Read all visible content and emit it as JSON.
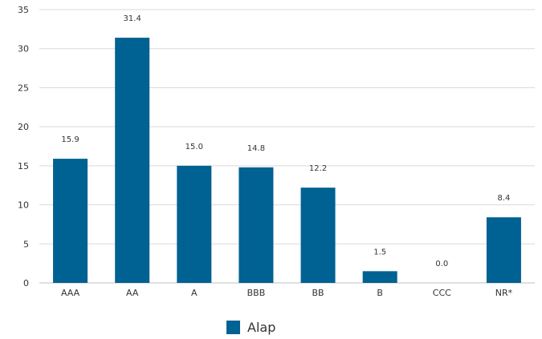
{
  "chart_data": {
    "type": "bar",
    "categories": [
      "AAA",
      "AA",
      "A",
      "BBB",
      "BB",
      "B",
      "CCC",
      "NR*"
    ],
    "series": [
      {
        "name": "Alap",
        "values": [
          15.9,
          31.4,
          15.0,
          14.8,
          12.2,
          1.5,
          0.0,
          8.4
        ]
      }
    ],
    "data_labels": [
      "15.9",
      "31.4",
      "15.0",
      "14.8",
      "12.2",
      "1.5",
      "0.0",
      "8.4"
    ],
    "ylim": [
      0,
      35
    ],
    "yticks": [
      0,
      5,
      10,
      15,
      20,
      25,
      30,
      35
    ],
    "grid": true,
    "legend_position": "bottom",
    "colors": {
      "bar": "#006193",
      "grid": "#d9d9d9",
      "axis": "#bfbfbf",
      "text": "#333333"
    }
  }
}
